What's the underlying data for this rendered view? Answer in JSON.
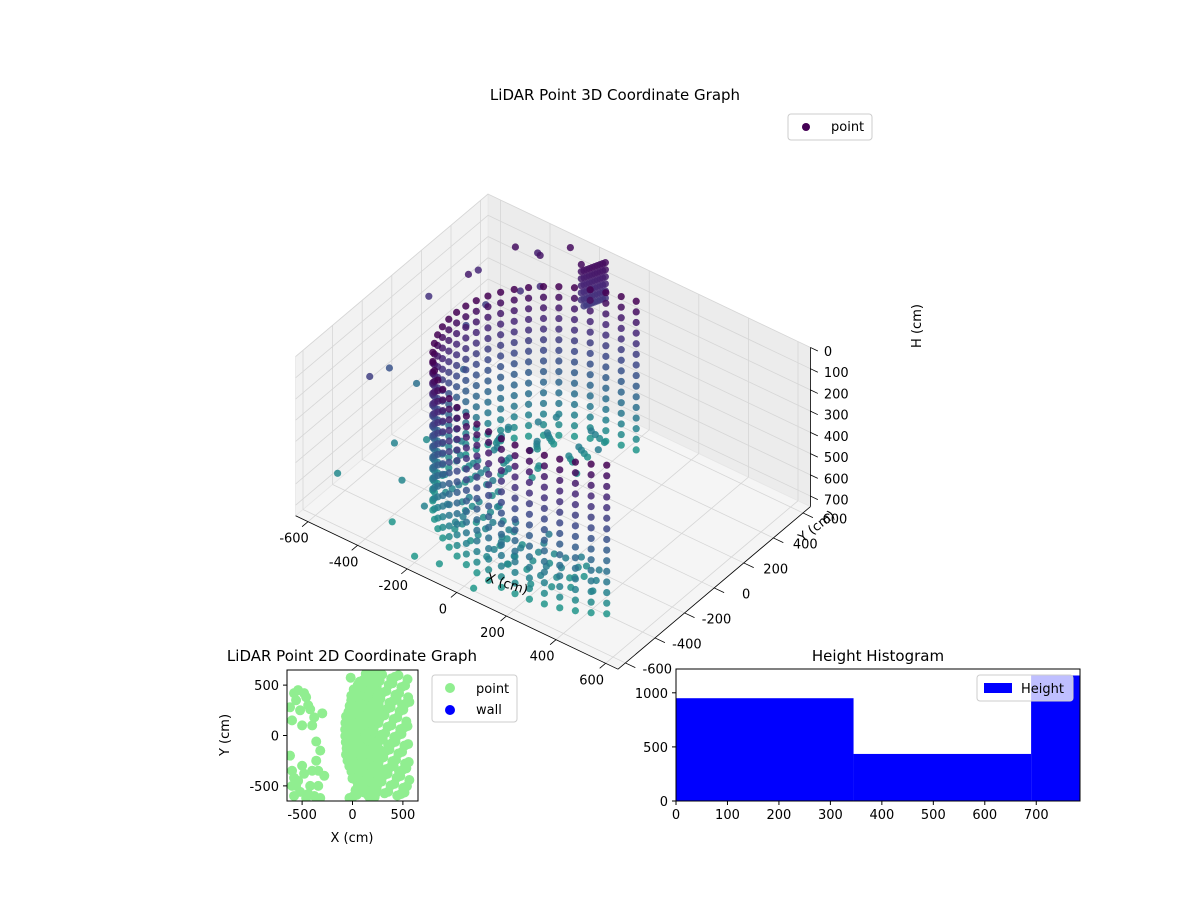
{
  "colors": {
    "viridis_dark": "#440154",
    "viridis_mid": "#3b528b",
    "viridis_teal": "#21918c",
    "viridis_yellow": "#fde725",
    "point_2d": "#90ee90",
    "wall_2d": "#0000ff",
    "hist_bar": "#0000ff",
    "pane": "#f2f2f2",
    "grid": "#d0d0d0"
  },
  "chart_data": [
    {
      "type": "scatter",
      "projection": "3d",
      "title": "LiDAR Point 3D Coordinate Graph",
      "xlabel": "X (cm)",
      "ylabel": "Y (cm)",
      "zlabel": "H (cm)",
      "xlim": [
        -650,
        650
      ],
      "ylim": [
        -650,
        650
      ],
      "zlim": [
        0,
        750
      ],
      "z_inverted": true,
      "xticks": [
        -600,
        -400,
        -200,
        0,
        200,
        400,
        600
      ],
      "yticks": [
        -600,
        -400,
        -200,
        0,
        200,
        400,
        600
      ],
      "zticks": [
        0,
        100,
        200,
        300,
        400,
        500,
        600,
        700
      ],
      "legend": "top-right",
      "colormap": "viridis",
      "series": [
        {
          "name": "point",
          "description_of_shape": "cylindrical wall of radius ~520 cm centered near (150,-50), arc from about 100° to 310°; vertical columns of points from H 0 to ~700; sparse points at left; cluster near (-200,600,0-200)",
          "cylinder_center": [
            150,
            -50
          ],
          "cylinder_radius": 520,
          "arc_deg": [
            100,
            310
          ],
          "columns": 36,
          "rows": 15,
          "h_range": [
            0,
            700
          ]
        }
      ],
      "points": [
        {
          "x": -620,
          "y": 200,
          "h": 200
        },
        {
          "x": -600,
          "y": -100,
          "h": 350
        },
        {
          "x": -580,
          "y": 50,
          "h": 500
        },
        {
          "x": -560,
          "y": -300,
          "h": 250
        },
        {
          "x": -540,
          "y": 400,
          "h": 150
        },
        {
          "x": -520,
          "y": 300,
          "h": 100
        },
        {
          "x": -500,
          "y": 250,
          "h": 300
        },
        {
          "x": -480,
          "y": 350,
          "h": 250
        },
        {
          "x": -450,
          "y": 500,
          "h": 50
        },
        {
          "x": -420,
          "y": 600,
          "h": 120
        },
        {
          "x": -400,
          "y": 450,
          "h": 200
        },
        {
          "x": -380,
          "y": 550,
          "h": 80
        },
        {
          "x": -350,
          "y": 500,
          "h": 180
        },
        {
          "x": -300,
          "y": 620,
          "h": 40
        },
        {
          "x": -520,
          "y": -200,
          "h": 600
        },
        {
          "x": -480,
          "y": -50,
          "h": 650
        },
        {
          "x": -400,
          "y": -350,
          "h": 620
        },
        {
          "x": -350,
          "y": -500,
          "h": 700
        },
        {
          "x": -200,
          "y": -600,
          "h": 720
        },
        {
          "x": -100,
          "y": -600,
          "h": 700
        },
        {
          "x": 50,
          "y": -620,
          "h": 720
        },
        {
          "x": -250,
          "y": -450,
          "h": 600
        },
        {
          "x": -600,
          "y": -450,
          "h": 640
        },
        {
          "x": -450,
          "y": 150,
          "h": 420
        }
      ]
    },
    {
      "type": "scatter",
      "title": "LiDAR Point 2D Coordinate Graph",
      "xlabel": "X (cm)",
      "ylabel": "Y (cm)",
      "xlim": [
        -650,
        650
      ],
      "ylim": [
        -650,
        650
      ],
      "xticks": [
        -500,
        0,
        500
      ],
      "yticks": [
        -500,
        0,
        500
      ],
      "legend": "outside-right",
      "series": [
        {
          "name": "point"
        },
        {
          "name": "wall",
          "values": []
        }
      ],
      "points": [
        [
          -620,
          280
        ],
        [
          -600,
          150
        ],
        [
          -580,
          420
        ],
        [
          -560,
          350
        ],
        [
          -540,
          450
        ],
        [
          -520,
          250
        ],
        [
          -500,
          100
        ],
        [
          -480,
          420
        ],
        [
          -460,
          380
        ],
        [
          -440,
          300
        ],
        [
          -420,
          260
        ],
        [
          -400,
          100
        ],
        [
          -380,
          180
        ],
        [
          -360,
          -60
        ],
        [
          -340,
          -350
        ],
        [
          -320,
          -150
        ],
        [
          -300,
          220
        ],
        [
          -280,
          -400
        ],
        [
          -600,
          -350
        ],
        [
          -580,
          -420
        ],
        [
          -560,
          -500
        ],
        [
          -540,
          -450
        ],
        [
          -520,
          -560
        ],
        [
          -500,
          -300
        ],
        [
          -480,
          -380
        ],
        [
          -460,
          -620
        ],
        [
          -440,
          -580
        ],
        [
          -420,
          -500
        ],
        [
          -400,
          -350
        ],
        [
          -380,
          -600
        ],
        [
          -360,
          -250
        ],
        [
          -340,
          -500
        ],
        [
          -320,
          -620
        ],
        [
          -620,
          -200
        ],
        [
          -600,
          -500
        ],
        [
          -580,
          -600
        ]
      ],
      "band": {
        "center_x": 180,
        "center_y": 0,
        "radius": 480,
        "thickness": 380
      }
    },
    {
      "type": "bar",
      "title": "Height Histogram",
      "xlim": [
        0,
        785
      ],
      "ylim": [
        0,
        1220
      ],
      "xticks": [
        0,
        100,
        200,
        300,
        400,
        500,
        600,
        700
      ],
      "yticks": [
        0,
        500,
        1000
      ],
      "legend": "top-right",
      "series": [
        {
          "name": "Height",
          "bins": [
            {
              "from": 0,
              "to": 345,
              "count": 950
            },
            {
              "from": 345,
              "to": 690,
              "count": 435
            },
            {
              "from": 690,
              "to": 785,
              "count": 1160
            }
          ]
        }
      ]
    }
  ]
}
